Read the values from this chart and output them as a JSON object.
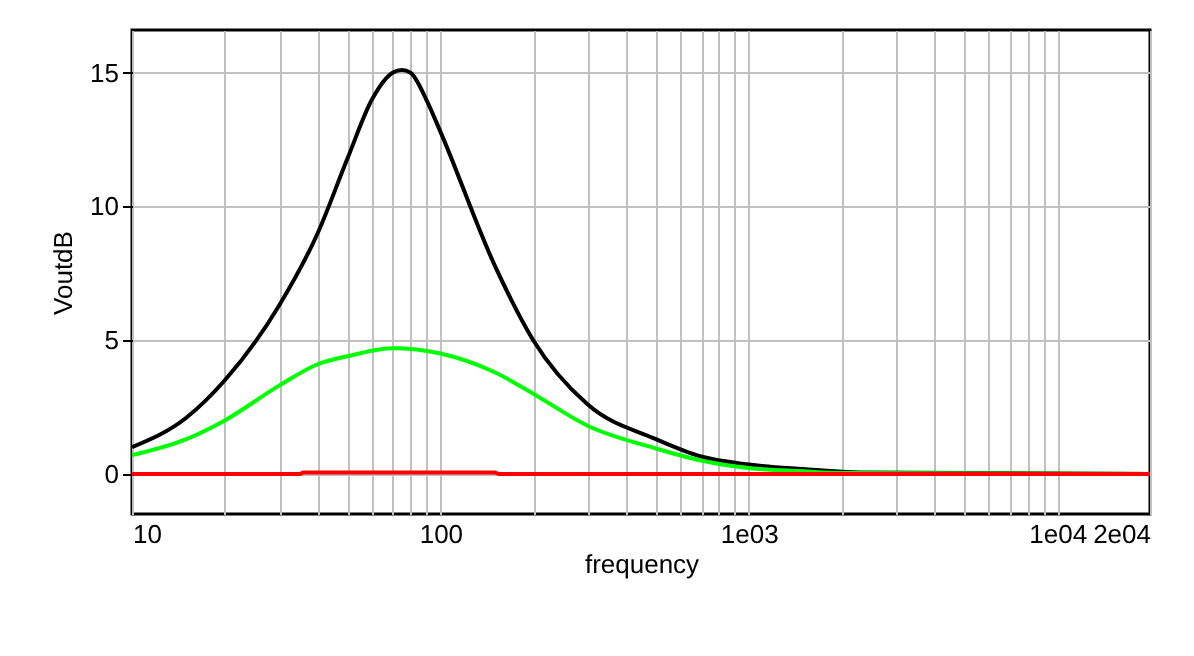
{
  "chart_data": {
    "type": "line",
    "xlabel": "frequency",
    "ylabel": "VoutdB",
    "log": "x",
    "grid": true,
    "xlim": [
      10,
      20000
    ],
    "ylim": [
      -1.5,
      16.6
    ],
    "xticks": [
      10,
      {
        "value": 20,
        "label": null
      },
      {
        "value": 30,
        "label": null
      },
      {
        "value": 40,
        "label": null
      },
      {
        "value": 50,
        "label": null
      },
      {
        "value": 60,
        "label": null
      },
      {
        "value": 70,
        "label": null
      },
      {
        "value": 80,
        "label": null
      },
      {
        "value": 90,
        "label": null
      },
      100,
      {
        "value": 200,
        "label": null
      },
      {
        "value": 300,
        "label": null
      },
      {
        "value": 400,
        "label": null
      },
      {
        "value": 500,
        "label": null
      },
      {
        "value": 600,
        "label": null
      },
      {
        "value": 700,
        "label": null
      },
      {
        "value": 800,
        "label": null
      },
      {
        "value": 900,
        "label": null
      },
      {
        "value": 1000,
        "label": "1e03"
      },
      {
        "value": 2000,
        "label": null
      },
      {
        "value": 3000,
        "label": null
      },
      {
        "value": 4000,
        "label": null
      },
      {
        "value": 5000,
        "label": null
      },
      {
        "value": 6000,
        "label": null
      },
      {
        "value": 7000,
        "label": null
      },
      {
        "value": 8000,
        "label": null
      },
      {
        "value": 9000,
        "label": null
      },
      {
        "value": 10000,
        "label": "1e04"
      },
      {
        "value": 20000,
        "label": "2e04"
      }
    ],
    "yticks": [
      0,
      5,
      10,
      15
    ],
    "series": [
      {
        "color": "#000000",
        "x": [
          10,
          15,
          20,
          30,
          40,
          50,
          60,
          70,
          75,
          80,
          90,
          100,
          150,
          200,
          300,
          500,
          700,
          1000,
          1500,
          2300,
          20000
        ],
        "values": [
          1.0,
          2.1,
          3.5,
          6.3,
          9.0,
          11.8,
          14.0,
          15.0,
          15.1,
          15.0,
          14.0,
          12.8,
          7.8,
          5.0,
          2.6,
          1.3,
          0.65,
          0.35,
          0.18,
          0.05,
          0
        ]
      },
      {
        "color": "#00ff00",
        "x": [
          10,
          15,
          20,
          30,
          40,
          50,
          70,
          100,
          150,
          200,
          300,
          500,
          700,
          1000,
          1500,
          2000,
          20000
        ],
        "values": [
          0.7,
          1.3,
          2.0,
          3.3,
          4.1,
          4.4,
          4.7,
          4.5,
          3.8,
          3.0,
          1.8,
          0.95,
          0.5,
          0.22,
          0.1,
          0.03,
          0
        ]
      },
      {
        "color": "#ff0000",
        "x": [
          10,
          35,
          36,
          150,
          155,
          20000
        ],
        "values": [
          0,
          0,
          0.05,
          0.05,
          0,
          0
        ]
      }
    ]
  }
}
